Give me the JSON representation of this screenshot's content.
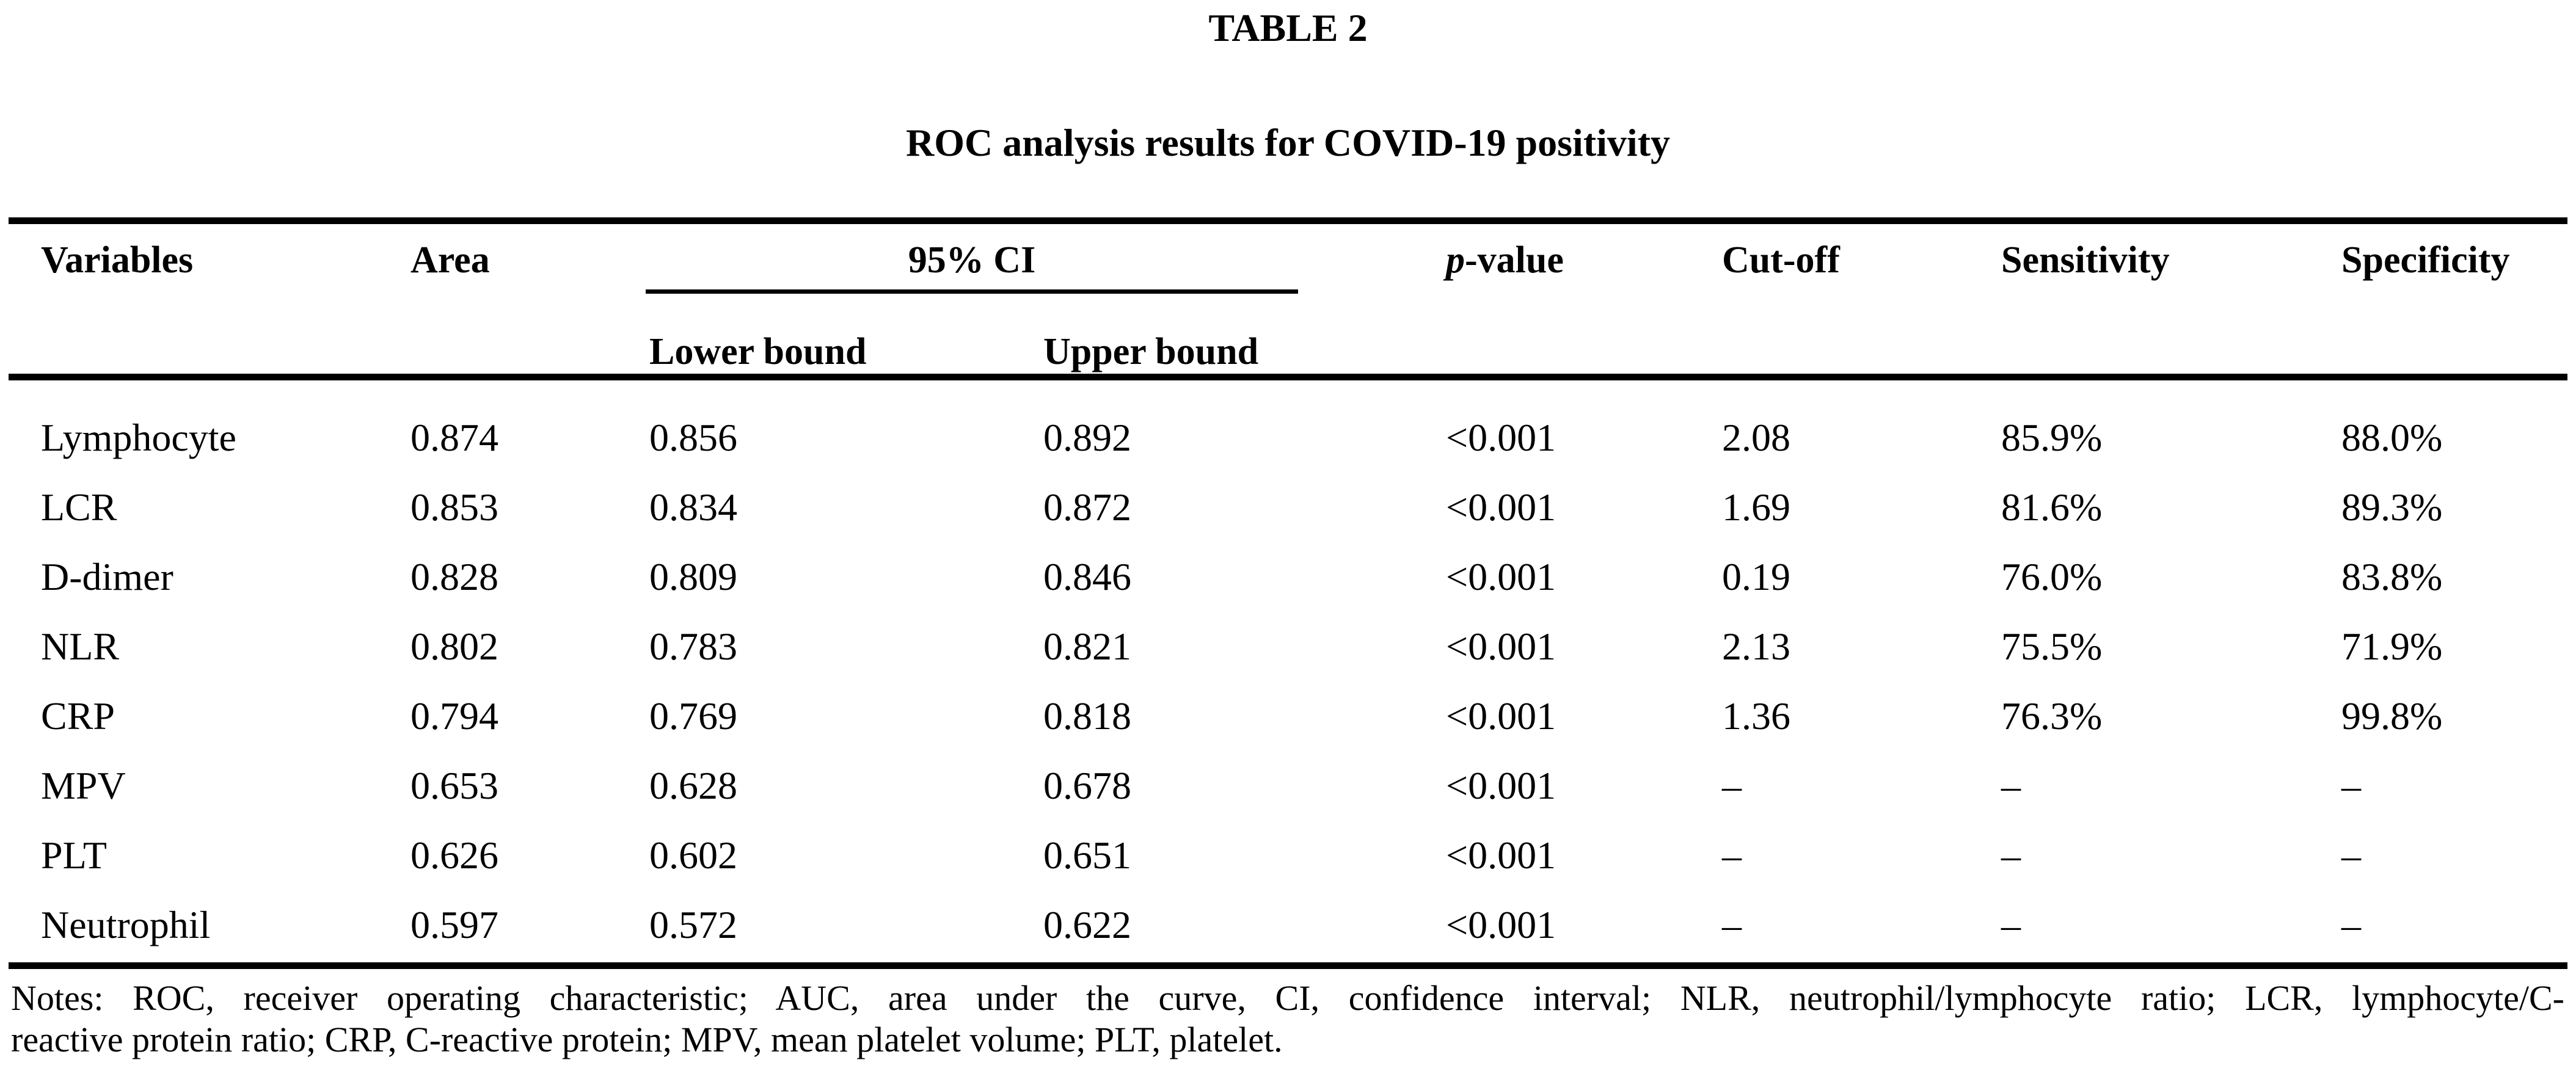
{
  "page": {
    "background": "#ffffff",
    "text_color": "#000000",
    "rule_color": "#000000"
  },
  "table": {
    "label": "TABLE 2",
    "caption": "ROC analysis results for COVID-19 positivity",
    "columns": {
      "variables": "Variables",
      "area": "Area",
      "ci_group": "95% CI",
      "ci_lower": "Lower bound",
      "ci_upper": "Upper bound",
      "p_italic": "p",
      "p_suffix": "-value",
      "cutoff": "Cut-off",
      "sensitivity": "Sensitivity",
      "specificity": "Specificity"
    },
    "rows": [
      {
        "variable": "Lymphocyte",
        "area": "0.874",
        "lower": "0.856",
        "upper": "0.892",
        "p": "<0.001",
        "cutoff": "2.08",
        "sensitivity": "85.9%",
        "specificity": "88.0%"
      },
      {
        "variable": "LCR",
        "area": "0.853",
        "lower": "0.834",
        "upper": "0.872",
        "p": "<0.001",
        "cutoff": "1.69",
        "sensitivity": "81.6%",
        "specificity": "89.3%"
      },
      {
        "variable": "D-dimer",
        "area": "0.828",
        "lower": "0.809",
        "upper": "0.846",
        "p": "<0.001",
        "cutoff": "0.19",
        "sensitivity": "76.0%",
        "specificity": "83.8%"
      },
      {
        "variable": "NLR",
        "area": "0.802",
        "lower": "0.783",
        "upper": "0.821",
        "p": "<0.001",
        "cutoff": "2.13",
        "sensitivity": "75.5%",
        "specificity": "71.9%"
      },
      {
        "variable": "CRP",
        "area": "0.794",
        "lower": "0.769",
        "upper": "0.818",
        "p": "<0.001",
        "cutoff": "1.36",
        "sensitivity": "76.3%",
        "specificity": "99.8%"
      },
      {
        "variable": "MPV",
        "area": "0.653",
        "lower": "0.628",
        "upper": "0.678",
        "p": "<0.001",
        "cutoff": "–",
        "sensitivity": "–",
        "specificity": "–"
      },
      {
        "variable": "PLT",
        "area": "0.626",
        "lower": "0.602",
        "upper": "0.651",
        "p": "<0.001",
        "cutoff": "–",
        "sensitivity": "–",
        "specificity": "–"
      },
      {
        "variable": "Neutrophil",
        "area": "0.597",
        "lower": "0.572",
        "upper": "0.622",
        "p": "<0.001",
        "cutoff": "–",
        "sensitivity": "–",
        "specificity": "–"
      }
    ],
    "notes_lines": [
      "Notes: ROC, receiver operating characteristic; AUC, area under the curve, CI, confidence interval; NLR, neutrophil/lymphocyte ratio; LCR, lymphocyte/C-",
      "reactive protein ratio; CRP, C-reactive protein; MPV, mean platelet volume; PLT, platelet."
    ],
    "notes_full": "Notes: ROC, receiver operating characteristic; AUC, area under the curve, CI, confidence interval; NLR, neutrophil/lymphocyte ratio; LCR, lymphocyte/C-reactive protein ratio; CRP, C-reactive protein; MPV, mean platelet volume; PLT, platelet."
  }
}
